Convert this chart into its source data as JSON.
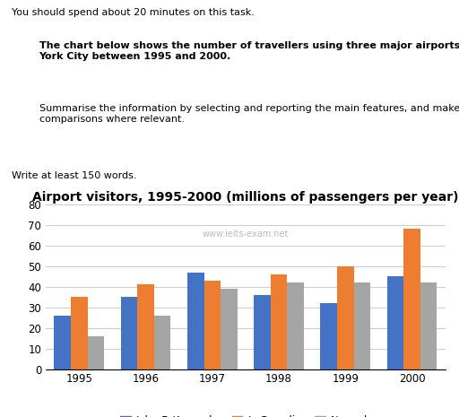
{
  "title": "Airport visitors, 1995-2000 (millions of passengers per year)",
  "watermark": "www.ielts-exam.net",
  "years": [
    "1995",
    "1996",
    "1997",
    "1998",
    "1999",
    "2000"
  ],
  "series": {
    "John F. Kennedy": [
      26,
      35,
      47,
      36,
      32,
      45
    ],
    "LaGuardia": [
      35,
      41,
      43,
      46,
      50,
      68
    ],
    "Newark": [
      16,
      26,
      39,
      42,
      42,
      42
    ]
  },
  "colors": {
    "John F. Kennedy": "#4472C4",
    "LaGuardia": "#ED7D31",
    "Newark": "#A5A5A5"
  },
  "ylim": [
    0,
    80
  ],
  "yticks": [
    0,
    10,
    20,
    30,
    40,
    50,
    60,
    70,
    80
  ],
  "bar_width": 0.25,
  "background_color": "#FFFFFF",
  "grid_color": "#CCCCCC",
  "title_fontsize": 10,
  "legend_fontsize": 8.5,
  "axis_fontsize": 8.5,
  "watermark_color": "#BBBBBB"
}
